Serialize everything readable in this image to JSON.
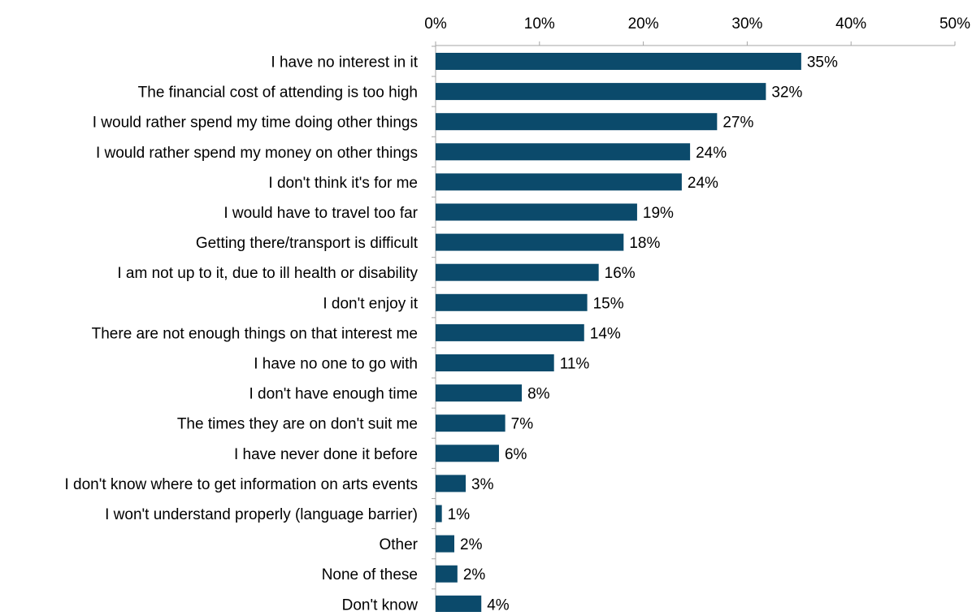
{
  "chart_data": {
    "type": "bar",
    "orientation": "horizontal",
    "categories": [
      "I have no interest in it",
      "The financial cost of attending is too high",
      "I would rather spend my time doing other things",
      "I would rather spend my money on other things",
      "I don't think it's for me",
      "I would have to travel too far",
      "Getting there/transport is difficult",
      "I am not up to it, due to ill health or disability",
      "I don't enjoy it",
      "There are not enough things on that interest me",
      "I have no one to go with",
      "I don't have enough time",
      "The times they are on don't suit me",
      "I have never done it before",
      "I don't know where to get information on arts events",
      "I won't understand properly (language barrier)",
      "Other",
      "None of these",
      "Don't know"
    ],
    "values": [
      35,
      32,
      27,
      24,
      24,
      19,
      18,
      16,
      15,
      14,
      11,
      8,
      7,
      6,
      3,
      1,
      2,
      2,
      4
    ],
    "bar_lengths": [
      35.2,
      31.8,
      27.1,
      24.5,
      23.7,
      19.4,
      18.1,
      15.7,
      14.6,
      14.3,
      11.4,
      8.3,
      6.7,
      6.1,
      2.9,
      0.6,
      1.8,
      2.1,
      4.4
    ],
    "data_labels": [
      "35%",
      "32%",
      "27%",
      "24%",
      "24%",
      "19%",
      "18%",
      "16%",
      "15%",
      "14%",
      "11%",
      "8%",
      "7%",
      "6%",
      "3%",
      "1%",
      "2%",
      "2%",
      "4%"
    ],
    "x_tick_labels": [
      "0%",
      "10%",
      "20%",
      "30%",
      "40%",
      "50%"
    ],
    "xlim": [
      0,
      50
    ],
    "x_axis_position": "top",
    "grid": false,
    "legend": "none",
    "title": "",
    "xlabel": "",
    "ylabel": "",
    "colors": {
      "bar": "#0b4a6b",
      "axis": "#a6a6a6",
      "text": "#000000"
    }
  }
}
